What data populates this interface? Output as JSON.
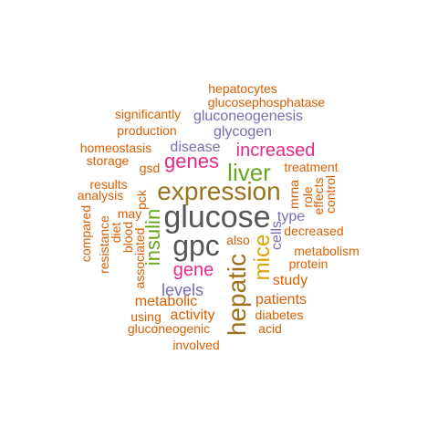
{
  "colors": {
    "orange": "#d95f02",
    "dark_gray": "#555555",
    "olive": "#9a7320",
    "green": "#66a61e",
    "magenta": "#e7298a",
    "purple": "#7570b3",
    "gold": "#d9a400"
  },
  "words": {
    "hepatocytes": "hepatocytes",
    "glucosephosphatase": "glucosephosphatase",
    "significantly": "significantly",
    "gluconeogenesis": "gluconeogenesis",
    "production": "production",
    "glycogen": "glycogen",
    "homeostasis": "homeostasis",
    "disease": "disease",
    "increased": "increased",
    "storage": "storage",
    "genes": "genes",
    "gsd": "gsd",
    "liver": "liver",
    "treatment": "treatment",
    "results": "results",
    "expression": "expression",
    "analysis": "analysis",
    "pck": "pck",
    "mrna": "mrna",
    "role": "role",
    "effects": "effects",
    "control": "control",
    "may": "may",
    "glucose": "glucose",
    "type": "type",
    "insulin": "insulin",
    "compared": "compared",
    "diet": "diet",
    "resistance": "resistance",
    "blood": "blood",
    "cells": "cells",
    "decreased": "decreased",
    "associated": "associated",
    "gpc": "gpc",
    "also": "also",
    "metabolism": "metabolism",
    "mice": "mice",
    "protein": "protein",
    "gene": "gene",
    "hepatic": "hepatic",
    "study": "study",
    "levels": "levels",
    "metabolic": "metabolic",
    "patients": "patients",
    "using": "using",
    "activity": "activity",
    "diabetes": "diabetes",
    "gluconeogenic": "gluconeogenic",
    "acid": "acid",
    "involved": "involved"
  }
}
